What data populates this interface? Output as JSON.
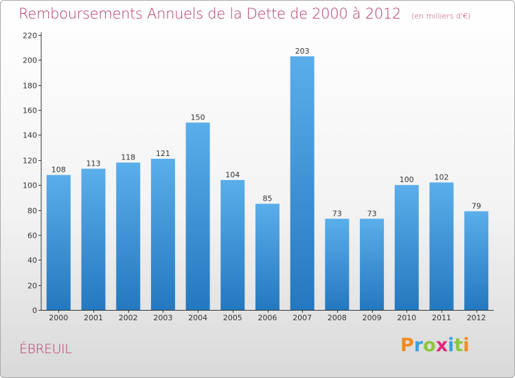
{
  "title": "Remboursements Annuels de la Dette de 2000 à 2012",
  "unit_note": "(en milliers d'€)",
  "commune": "ÉBREUIL",
  "logo": {
    "letters": [
      "P",
      "r",
      "o",
      "x",
      "i",
      "t",
      "i"
    ],
    "colors": [
      "#f18a1c",
      "#3aa0e0",
      "#8cc63f",
      "#e2297b",
      "#3aa0e0",
      "#8cc63f",
      "#f18a1c"
    ]
  },
  "colors": {
    "bar_top": "#5aaeea",
    "bar_bottom": "#2478bf",
    "title": "#b3386b",
    "axis": "#333333"
  },
  "chart_data": {
    "type": "bar",
    "categories": [
      "2000",
      "2001",
      "2002",
      "2003",
      "2004",
      "2005",
      "2006",
      "2007",
      "2008",
      "2009",
      "2010",
      "2011",
      "2012"
    ],
    "values": [
      108,
      113,
      118,
      121,
      150,
      104,
      85,
      203,
      73,
      73,
      100,
      102,
      79
    ],
    "yticks": [
      0,
      20,
      40,
      60,
      80,
      100,
      120,
      140,
      160,
      180,
      200,
      220
    ],
    "ylim": [
      0,
      220
    ],
    "grid": false,
    "xlabel": "",
    "ylabel": ""
  }
}
